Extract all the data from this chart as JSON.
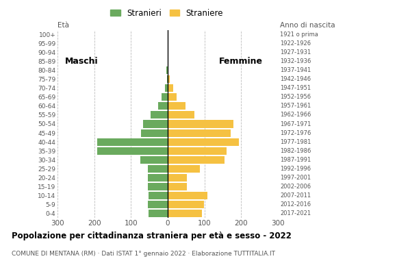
{
  "age_groups": [
    "0-4",
    "5-9",
    "10-14",
    "15-19",
    "20-24",
    "25-29",
    "30-34",
    "35-39",
    "40-44",
    "45-49",
    "50-54",
    "55-59",
    "60-64",
    "65-69",
    "70-74",
    "75-79",
    "80-84",
    "85-89",
    "90-94",
    "95-99",
    "100+"
  ],
  "birth_years": [
    "2017-2021",
    "2012-2016",
    "2007-2011",
    "2002-2006",
    "1997-2001",
    "1992-1996",
    "1987-1991",
    "1982-1986",
    "1977-1981",
    "1972-1976",
    "1967-1971",
    "1962-1966",
    "1957-1961",
    "1952-1956",
    "1947-1951",
    "1942-1946",
    "1937-1941",
    "1932-1936",
    "1927-1931",
    "1922-1926",
    "1921 o prima"
  ],
  "males": [
    52,
    55,
    52,
    55,
    55,
    55,
    75,
    192,
    193,
    72,
    68,
    46,
    27,
    16,
    8,
    2,
    3,
    0,
    0,
    0,
    0
  ],
  "females": [
    93,
    99,
    108,
    52,
    52,
    87,
    155,
    160,
    193,
    172,
    178,
    72,
    48,
    25,
    14,
    5,
    2,
    1,
    0,
    0,
    0
  ],
  "male_color": "#6aaa5e",
  "female_color": "#f5c142",
  "title": "Popolazione per cittadinanza straniera per età e sesso - 2022",
  "subtitle": "COMUNE DI MENTANA (RM) · Dati ISTAT 1° gennaio 2022 · Elaborazione TUTTITALIA.IT",
  "legend_males": "Stranieri",
  "legend_females": "Straniere",
  "label_maschi": "Maschi",
  "label_femmine": "Femmine",
  "xlim": 300,
  "background_color": "#ffffff",
  "grid_color": "#bbbbbb",
  "bar_height": 0.85
}
